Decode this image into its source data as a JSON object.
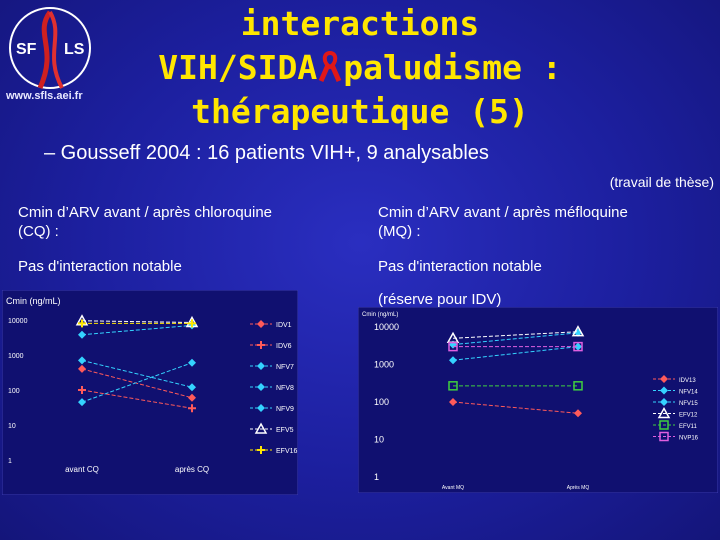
{
  "logo": {
    "letters_left": "SF",
    "letters_right": "LS",
    "url": "www.sfls.aei.fr"
  },
  "title": {
    "line1": "interactions",
    "line2a": "VIH/SIDA",
    "line2b": "paludisme :",
    "line3": "thérapeutique (5)"
  },
  "bullet": "– Gousseff 2004 : 16 patients VIH+, 9 analysables",
  "thesis_note": "(travail de thèse)",
  "left": {
    "heading_l1": "Cmin d’ARV avant / après chloroquine",
    "heading_l2": "(CQ) :",
    "result": "Pas d'interaction notable"
  },
  "right": {
    "heading_l1": "Cmin d’ARV avant / après méfloquine",
    "heading_l2": "(MQ) :",
    "result": "Pas d'interaction notable",
    "note": "(réserve pour IDV)"
  },
  "chart_data": [
    {
      "type": "line",
      "ylabel": "Cmin (ng/mL)",
      "yscale": "log",
      "ylim": [
        1,
        10000
      ],
      "yticks": [
        "10000",
        "1000",
        "100",
        "10",
        "1"
      ],
      "categories": [
        "avant CQ",
        "après CQ"
      ],
      "series": [
        {
          "name": "IDV1",
          "values": [
            400,
            60
          ],
          "color": "#ff5a5a",
          "marker": "diamond"
        },
        {
          "name": "IDV6",
          "values": [
            100,
            30
          ],
          "color": "#ff5a5a",
          "marker": "plus"
        },
        {
          "name": "NFV7",
          "values": [
            700,
            120
          ],
          "color": "#34d3ff",
          "marker": "diamond"
        },
        {
          "name": "NFV8",
          "values": [
            45,
            600
          ],
          "color": "#34d3ff",
          "marker": "diamond"
        },
        {
          "name": "NFV9",
          "values": [
            3800,
            7000
          ],
          "color": "#34d3ff",
          "marker": "diamond"
        },
        {
          "name": "EFV5",
          "values": [
            9500,
            8500
          ],
          "color": "#ffffff",
          "marker": "triangle"
        },
        {
          "name": "EFV16",
          "values": [
            8000,
            8000
          ],
          "color": "#ffe600",
          "marker": "plus"
        }
      ],
      "legend": "right",
      "grid": false
    },
    {
      "type": "line",
      "ylabel": "Cmin (ng/mL)",
      "yscale": "log",
      "ylim": [
        1,
        10000
      ],
      "yticks": [
        "10000",
        "1000",
        "100",
        "10",
        "1"
      ],
      "categories": [
        "Avant MQ",
        "Après MQ"
      ],
      "series": [
        {
          "name": "IDV13",
          "values": [
            100,
            50
          ],
          "color": "#ff5a5a",
          "marker": "diamond"
        },
        {
          "name": "NFV14",
          "values": [
            1300,
            3000
          ],
          "color": "#34d3ff",
          "marker": "diamond"
        },
        {
          "name": "NFV15",
          "values": [
            3400,
            7000
          ],
          "color": "#34d3ff",
          "marker": "diamond"
        },
        {
          "name": "EFV12",
          "values": [
            5000,
            7500
          ],
          "color": "#ffffff",
          "marker": "triangle"
        },
        {
          "name": "EFV11",
          "values": [
            270,
            270
          ],
          "color": "#3fcf3f",
          "marker": "box"
        },
        {
          "name": "NVP16",
          "values": [
            3000,
            3000
          ],
          "color": "#e060e0",
          "marker": "box"
        }
      ],
      "legend": "right",
      "grid": false
    }
  ]
}
